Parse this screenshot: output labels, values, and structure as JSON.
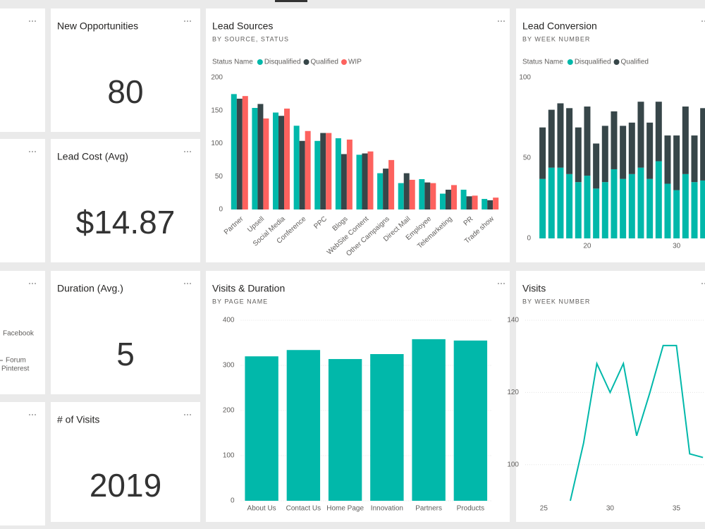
{
  "cards": [
    {
      "title": "New Opportunities",
      "value": 80
    },
    {
      "title": "Lead Cost (Avg)",
      "value": "$14.87"
    },
    {
      "title": "Duration (Avg.)",
      "value": 5
    },
    {
      "title": "# of Visits",
      "value": 2019
    }
  ],
  "partial_legend": [
    "Facebook",
    "Forum",
    "Pinterest"
  ],
  "chart_data": [
    {
      "type": "bar",
      "title": "Lead Sources",
      "subtitle": "BY SOURCE, STATUS",
      "legend_title": "Status Name",
      "categories": [
        "Partner",
        "Upsell",
        "Social Media",
        "Conference",
        "PPC",
        "Blogs",
        "WebSite Content",
        "Other Campaigns",
        "Direct Mail",
        "Employee",
        "Telemarketing",
        "PR",
        "Trade show"
      ],
      "series": [
        {
          "name": "Disqualified",
          "color": "#01b8aa",
          "values": [
            175,
            154,
            147,
            127,
            104,
            108,
            83,
            55,
            40,
            46,
            24,
            30,
            16
          ]
        },
        {
          "name": "Qualified",
          "color": "#374649",
          "values": [
            168,
            160,
            142,
            104,
            116,
            84,
            85,
            62,
            55,
            41,
            30,
            20,
            14
          ]
        },
        {
          "name": "WIP",
          "color": "#fd625e",
          "values": [
            172,
            138,
            153,
            119,
            116,
            106,
            88,
            75,
            45,
            40,
            37,
            21,
            18
          ]
        }
      ],
      "ylim": [
        0,
        200
      ],
      "yticks": [
        0,
        50,
        100,
        150,
        200
      ],
      "grid": false
    },
    {
      "type": "stacked_bar",
      "title": "Lead Conversion",
      "subtitle": "BY WEEK NUMBER",
      "legend_title": "Status Name",
      "x": [
        15,
        16,
        17,
        18,
        19,
        20,
        21,
        22,
        23,
        24,
        25,
        26,
        27,
        28,
        29,
        30,
        31,
        32,
        33
      ],
      "series": [
        {
          "name": "Disqualified",
          "color": "#01b8aa",
          "values": [
            37,
            44,
            44,
            40,
            35,
            39,
            31,
            35,
            43,
            37,
            40,
            44,
            37,
            48,
            34,
            30,
            40,
            35,
            36
          ]
        },
        {
          "name": "Qualified",
          "color": "#374649",
          "values": [
            32,
            36,
            40,
            41,
            34,
            43,
            28,
            35,
            36,
            33,
            32,
            41,
            35,
            37,
            30,
            34,
            42,
            29,
            45
          ]
        }
      ],
      "xlim": [
        14.4,
        33.5
      ],
      "xticks": [
        20,
        30
      ],
      "ylim": [
        0,
        100
      ],
      "yticks": [
        0,
        50,
        100
      ],
      "grid": false
    },
    {
      "type": "bar",
      "title": "Visits & Duration",
      "subtitle": "BY PAGE NAME",
      "categories": [
        "About Us",
        "Contact Us",
        "Home Page",
        "Innovation",
        "Partners",
        "Products"
      ],
      "values": [
        320,
        334,
        314,
        325,
        358,
        355
      ],
      "color": "#01b8aa",
      "ylim": [
        0,
        400
      ],
      "yticks": [
        0,
        100,
        200,
        300,
        400
      ],
      "grid": true
    },
    {
      "type": "line",
      "title": "Visits",
      "subtitle": "BY WEEK NUMBER",
      "x": [
        27,
        28,
        29,
        30,
        31,
        32,
        33,
        34,
        35,
        36,
        37
      ],
      "values": [
        90,
        106,
        128,
        120,
        128,
        108,
        120,
        133,
        133,
        103,
        102
      ],
      "color": "#01b8aa",
      "xlim": [
        23.6,
        37.1
      ],
      "xticks": [
        25,
        30,
        35
      ],
      "ylim": [
        90,
        140
      ],
      "yticks": [
        100,
        120,
        140
      ],
      "grid": true
    }
  ]
}
